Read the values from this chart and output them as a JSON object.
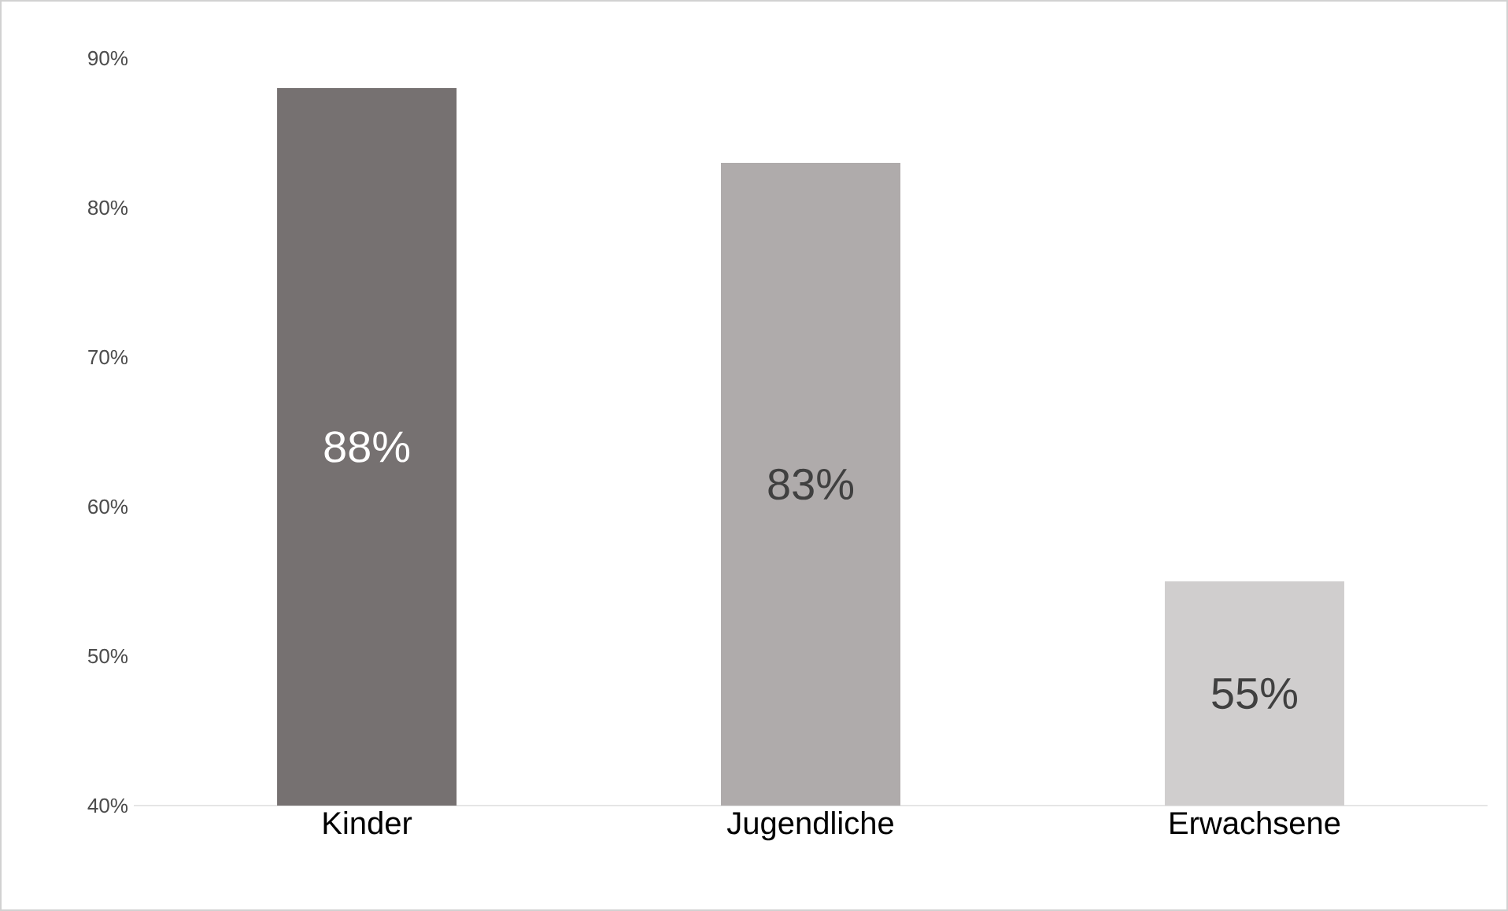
{
  "chart_data": {
    "type": "bar",
    "categories": [
      "Kinder",
      "Jugendliche",
      "Erwachsene"
    ],
    "values": [
      88,
      83,
      55
    ],
    "colors": [
      "#767171",
      "#afabab",
      "#d0cece"
    ],
    "value_labels": [
      "88%",
      "83%",
      "55%"
    ],
    "ylim": [
      40,
      90
    ],
    "yticks": [
      {
        "value": 40,
        "label": "40%"
      },
      {
        "value": 50,
        "label": "50%"
      },
      {
        "value": 60,
        "label": "60%"
      },
      {
        "value": 70,
        "label": "70%"
      },
      {
        "value": 80,
        "label": "80%"
      },
      {
        "value": 90,
        "label": "90%"
      }
    ],
    "grid": false
  }
}
